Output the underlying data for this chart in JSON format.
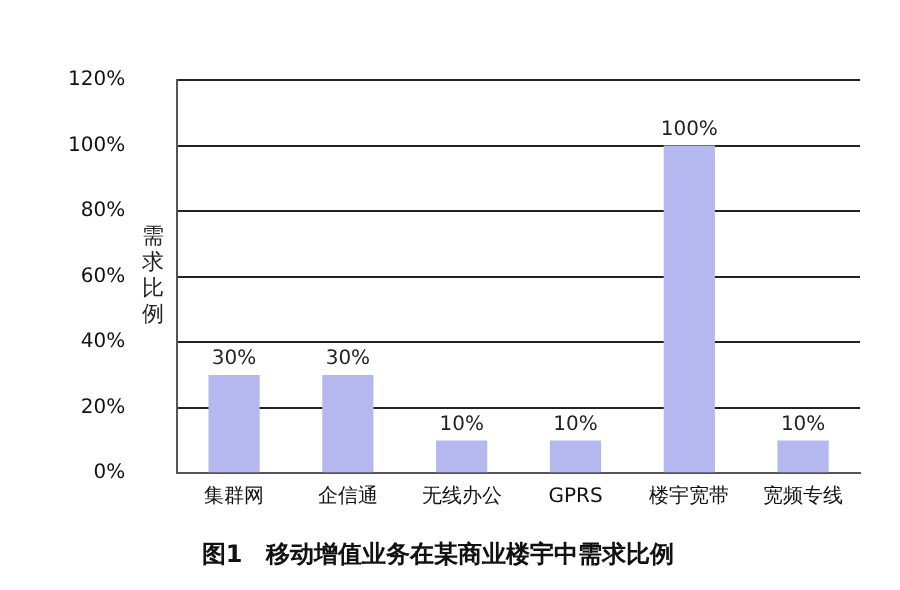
{
  "chart_data": {
    "type": "bar",
    "title": "图1　移动增值业务在某商业楼宇中需求比例",
    "ylabel": "需求比例",
    "categories": [
      "集群网",
      "企信通",
      "无线办公",
      "GPRS",
      "楼宇宽带",
      "宽频专线"
    ],
    "values": [
      30,
      30,
      10,
      10,
      100,
      10
    ],
    "value_labels": [
      "30%",
      "30%",
      "10%",
      "10%",
      "100%",
      "10%"
    ],
    "color": "#b4b8ee",
    "ylim": [
      0,
      120
    ],
    "yticks": [
      {
        "value": 0,
        "label": "0%"
      },
      {
        "value": 20,
        "label": "20%"
      },
      {
        "value": 40,
        "label": "40%"
      },
      {
        "value": 60,
        "label": "60%"
      },
      {
        "value": 80,
        "label": "80%"
      },
      {
        "value": 100,
        "label": "100%"
      },
      {
        "value": 120,
        "label": "120%"
      }
    ],
    "grid": "y"
  }
}
